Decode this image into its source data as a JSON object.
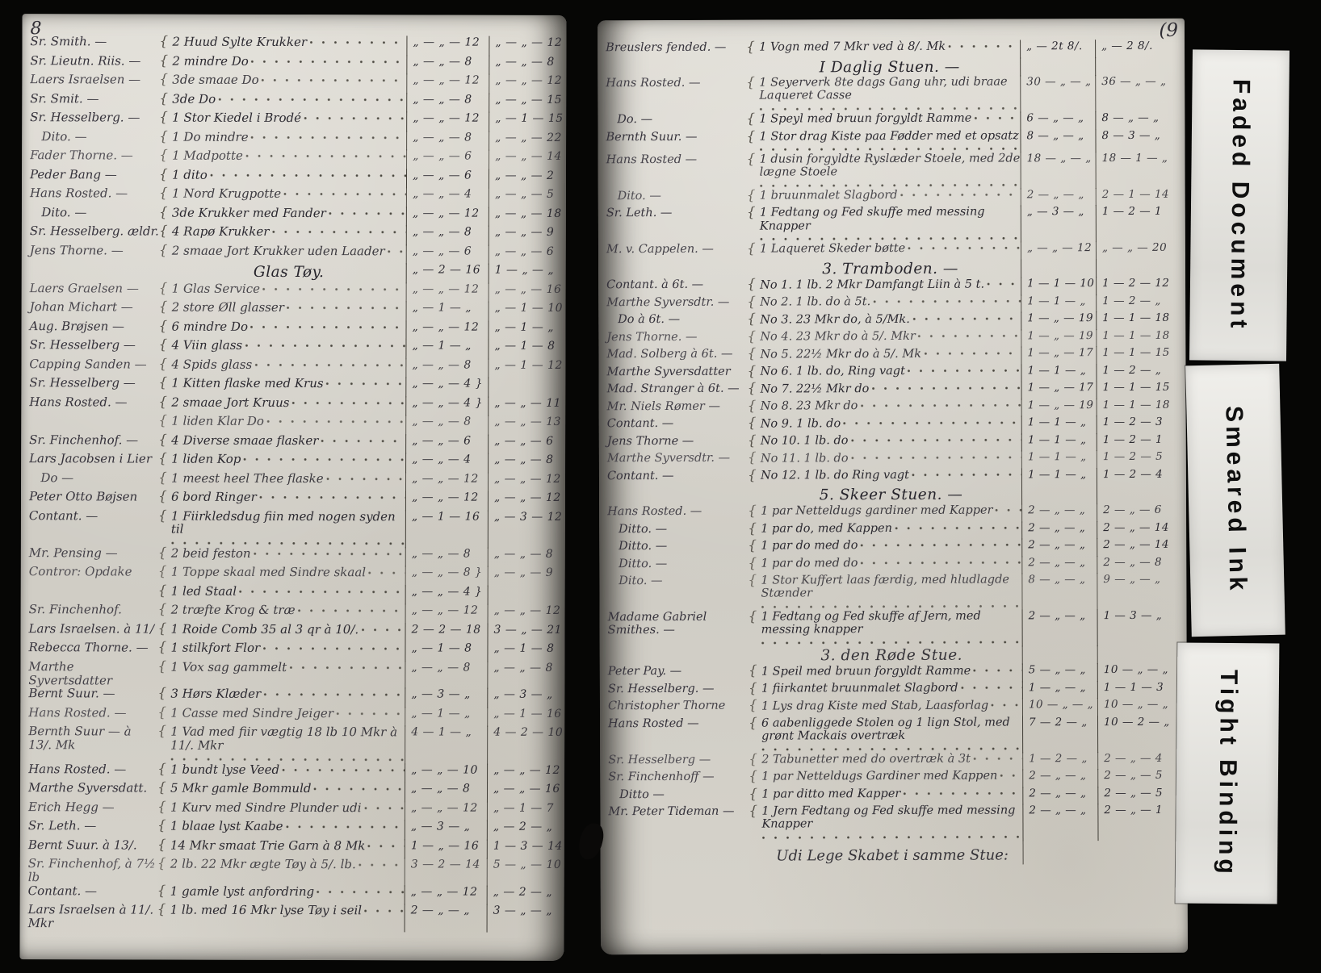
{
  "condition_tags": [
    "Faded Document",
    "Smeared Ink",
    "Tight Binding"
  ],
  "left_page": {
    "folio": "8",
    "rows": [
      {
        "name": "Sr. Smith. —",
        "item": "2 Huud Sylte Krukker",
        "v1": "„ — „ — 12",
        "v2": "„ — „ — 12"
      },
      {
        "name": "Sr. Lieutn. Riis. —",
        "item": "2 mindre Do",
        "v1": "„ — „ — 8",
        "v2": "„ — „ — 8"
      },
      {
        "name": "Laers Israelsen —",
        "item": "3de smaae Do",
        "v1": "„ — „ — 12",
        "v2": "„ — „ — 12"
      },
      {
        "name": "Sr. Smit. —",
        "item": "3de Do",
        "v1": "„ — „ — 8",
        "v2": "„ — „ — 15"
      },
      {
        "name": "Sr. Hesselberg. —",
        "item": "1 Stor Kiedel i Brodé",
        "v1": "„ — „ — 12",
        "v2": "„ — 1 — 15"
      },
      {
        "name": "   Dito. —",
        "item": "1 Do mindre",
        "v1": "„ — „ — 8",
        "v2": "„ — „ — 22"
      },
      {
        "name": "Fader Thorne. —",
        "item": "1 Madpotte",
        "v1": "„ — „ — 6",
        "v2": "„ — „ — 14"
      },
      {
        "name": "Peder Bang —",
        "item": "1 dito",
        "v1": "„ — „ — 6",
        "v2": "„ — „ — 2"
      },
      {
        "name": "Hans Rosted. —",
        "item": "1 Nord Krugpotte",
        "v1": "„ — „ — 4",
        "v2": "„ — „ — 5"
      },
      {
        "name": "   Dito. —",
        "item": "3de Krukker med Fander",
        "v1": "„ — „ — 12",
        "v2": "„ — „ — 18"
      },
      {
        "name": "Sr. Hesselberg. ældr.",
        "item": "4 Rapø Krukker",
        "v1": "„ — „ — 8",
        "v2": "„ — „ — 9"
      },
      {
        "name": "Jens Thorne. —",
        "item": "2 smaae Jort Krukker uden Laader",
        "v1": "„ — „ — 6",
        "v2": "„ — „ — 6"
      },
      {
        "heading": "Glas Tøy.",
        "v1": "„ — 2 — 16",
        "v2": "1 — „ — „"
      },
      {
        "name": "Laers Graelsen —",
        "item": "1 Glas Service",
        "v1": "„ — „ — 12",
        "v2": "„ — „ — 16"
      },
      {
        "name": "Johan Michart —",
        "item": "2 store Øll glasser",
        "v1": "„ — 1 — „",
        "v2": "„ — 1 — 10"
      },
      {
        "name": "Aug. Brøjsen —",
        "item": "6 mindre Do",
        "v1": "„ — „ — 12",
        "v2": "„ — 1 — „"
      },
      {
        "name": "Sr. Hesselberg —",
        "item": "4 Viin glass",
        "v1": "„ — 1 — „",
        "v2": "„ — 1 — 8"
      },
      {
        "name": "Capping Sanden —",
        "item": "4 Spids glass",
        "v1": "„ — „ — 8",
        "v2": "„ — 1 — 12"
      },
      {
        "name": "Sr. Hesselberg —",
        "item": "1 Kitten flaske med Krus",
        "v1": "„ — „ — 4 }",
        "v2": ""
      },
      {
        "name": "Hans Rosted. —",
        "item": "2 smaae Jort Kruus",
        "v1": "„ — „ — 4 }",
        "v2": "„ — „ — 11"
      },
      {
        "name": "",
        "item": "1 liden Klar Do",
        "v1": "„ — „ — 8",
        "v2": "„ — „ — 13"
      },
      {
        "name": "Sr. Finchenhof. —",
        "item": "4 Diverse smaae flasker",
        "v1": "„ — „ — 6",
        "v2": "„ — „ — 6"
      },
      {
        "name": "Lars Jacobsen i Lier",
        "item": "1 liden Kop",
        "v1": "„ — „ — 4",
        "v2": "„ — „ — 8"
      },
      {
        "name": "   Do —",
        "item": "1 meest heel Thee flaske",
        "v1": "„ — „ — 12",
        "v2": "„ — „ — 12"
      },
      {
        "name": "Peter Otto Bøjsen",
        "item": "6 bord Ringer",
        "v1": "„ — „ — 12",
        "v2": "„ — „ — 12"
      },
      {
        "name": "Contant. —",
        "item": "1 Fiirkledsdug fiin med nogen syden til",
        "v1": "„ — 1 — 16",
        "v2": "„ — 3 — 12"
      },
      {
        "name": "Mr. Pensing —",
        "item": "2 beid feston",
        "v1": "„ — „ — 8",
        "v2": "„ — „ — 8"
      },
      {
        "name": "Contror: Opdake",
        "item": "1 Toppe skaal med Sindre skaal",
        "v1": "„ — „ — 8 }",
        "v2": "„ — „ — 9"
      },
      {
        "name": "",
        "item": "1 led Staal",
        "v1": "„ — „ — 4 }",
        "v2": ""
      },
      {
        "name": "Sr. Finchenhof.",
        "item": "2 træfte Krog & træ",
        "v1": "„ — „ — 12",
        "v2": "„ — „ — 12"
      },
      {
        "name": "Lars Israelsen. à 11/",
        "item": "1 Roide Comb 35 al 3 qr à 10/.",
        "v1": "2 — 2 — 18",
        "v2": "3 — „ — 21"
      },
      {
        "name": "Rebecca Thorne. —",
        "item": "1 stilkfort Flor",
        "v1": "„ — 1 — 8",
        "v2": "„ — 1 — 8"
      },
      {
        "name": "Marthe Syvertsdatter",
        "item": "1 Vox sag gammelt",
        "v1": "„ — „ — 8",
        "v2": "„ — „ — 8"
      },
      {
        "name": "Bernt Suur. —",
        "item": "3 Hørs Klæder",
        "v1": "„ — 3 — „",
        "v2": "„ — 3 — „"
      },
      {
        "name": "Hans Rosted. —",
        "item": "1 Casse med Sindre Jeiger",
        "v1": "„ — 1 — „",
        "v2": "„ — 1 — 16"
      },
      {
        "name": "Bernth Suur — à 13/. Mk",
        "item": "1 Vad med fiir vægtig 18 lb 10 Mkr à 11/. Mkr",
        "v1": "4 — 1 — „",
        "v2": "4 — 2 — 10"
      },
      {
        "name": "Hans Rosted. —",
        "item": "1 bundt lyse Veed",
        "v1": "„ — „ — 10",
        "v2": "„ — „ — 12"
      },
      {
        "name": "Marthe Syversdatt.",
        "item": "5 Mkr gamle Bommuld",
        "v1": "„ — „ — 8",
        "v2": "„ — „ — 16"
      },
      {
        "name": "Erich Hegg —",
        "item": "1 Kurv med Sindre Plunder udi",
        "v1": "„ — „ — 12",
        "v2": "„ — 1 — 7"
      },
      {
        "name": "Sr. Leth. —",
        "item": "1 blaae lyst Kaabe",
        "v1": "„ — 3 — „",
        "v2": "„ — 2 — „"
      },
      {
        "name": "Bernt Suur. à 13/.",
        "item": "14 Mkr smaat Trie Garn à 8 Mk",
        "v1": "1 — „ — 16",
        "v2": "1 — 3 — 14"
      },
      {
        "name": "Sr. Finchenhof, à 7½ lb",
        "item": "2 lb. 22 Mkr ægte Tøy à 5/. lb.",
        "v1": "3 — 2 — 14",
        "v2": "5 — „ — 10"
      },
      {
        "name": "Contant. —",
        "item": "1 gamle lyst anfordring",
        "v1": "„ — „ — 12",
        "v2": "„ — 2 — „"
      },
      {
        "name": "Lars Israelsen à 11/. Mkr",
        "item": "1 lb. med 16 Mkr lyse Tøy i seil",
        "v1": "2 — „ — „",
        "v2": "3 — „ — „"
      }
    ]
  },
  "right_page": {
    "folio": "(9",
    "rows": [
      {
        "name": "Breuslers fended. —",
        "item": "1 Vogn med 7 Mkr ved à 8/. Mk",
        "v1": "„ — 2t 8/.",
        "v2": "„ — 2 8/."
      },
      {
        "heading": "I Daglig Stuen. —"
      },
      {
        "name": "Hans Rosted. —",
        "item": "1 Seyerverk 8te dags Gang uhr, udi braae Laqueret Casse",
        "v1": "30 — „ — „",
        "v2": "36 — „ — „"
      },
      {
        "name": "   Do. —",
        "item": "1 Speyl med bruun forgyldt Ramme",
        "v1": "6 — „ — „",
        "v2": "8 — „ — „"
      },
      {
        "name": "Bernth Suur. —",
        "item": "1 Stor drag Kiste paa Fødder med et opsatz",
        "v1": "8 — „ — „",
        "v2": "8 — 3 — „"
      },
      {
        "name": "Hans Rosted —",
        "item": "1 dusin forgyldte Ryslæder Stoele, med 2de lægne Stoele",
        "v1": "18 — „ — „",
        "v2": "18 — 1 — „"
      },
      {
        "name": "   Dito. —",
        "item": "1 bruunmalet Slagbord",
        "v1": "2 — „ — „",
        "v2": "2 — 1 — 14"
      },
      {
        "name": "Sr. Leth. —",
        "item": "1 Fedtang og Fed skuffe med messing Knapper",
        "v1": "„ — 3 — „",
        "v2": "1 — 2 — 1"
      },
      {
        "name": "M. v. Cappelen. —",
        "item": "1 Laqueret Skeder bøtte",
        "v1": "„ — „ — 12",
        "v2": "„ — „ — 20"
      },
      {
        "heading": "3. Tramboden. —"
      },
      {
        "name": "Contant. à 6t. —",
        "item": "No 1. 1 lb. 2 Mkr Damfangt Liin à 5 t.",
        "v1": "1 — 1 — 10",
        "v2": "1 — 2 — 12"
      },
      {
        "name": "Marthe Syversdtr. —",
        "item": "No 2. 1 lb. do à 5t.",
        "v1": "1 — 1 — „",
        "v2": "1 — 2 — „"
      },
      {
        "name": "   Do à 6t. —",
        "item": "No 3. 23 Mkr do, à 5/Mk.",
        "v1": "1 — „ — 19",
        "v2": "1 — 1 — 18"
      },
      {
        "name": "Jens Thorne. —",
        "item": "No 4. 23 Mkr do à 5/. Mkr",
        "v1": "1 — „ — 19",
        "v2": "1 — 1 — 18"
      },
      {
        "name": "Mad. Solberg à 6t. —",
        "item": "No 5. 22½ Mkr do à 5/. Mk",
        "v1": "1 — „ — 17",
        "v2": "1 — 1 — 15"
      },
      {
        "name": "Marthe Syversdatter",
        "item": "No 6. 1 lb. do, Ring vagt",
        "v1": "1 — 1 — „",
        "v2": "1 — 2 — „"
      },
      {
        "name": "Mad. Stranger à 6t. —",
        "item": "No 7. 22½ Mkr do",
        "v1": "1 — „ — 17",
        "v2": "1 — 1 — 15"
      },
      {
        "name": "Mr. Niels Rømer —",
        "item": "No 8. 23 Mkr do",
        "v1": "1 — „ — 19",
        "v2": "1 — 1 — 18"
      },
      {
        "name": "Contant. —",
        "item": "No 9. 1 lb. do",
        "v1": "1 — 1 — „",
        "v2": "1 — 2 — 3"
      },
      {
        "name": "Jens Thorne —",
        "item": "No 10. 1 lb. do",
        "v1": "1 — 1 — „",
        "v2": "1 — 2 — 1"
      },
      {
        "name": "Marthe Syversdtr. —",
        "item": "No 11. 1 lb. do",
        "v1": "1 — 1 — „",
        "v2": "1 — 2 — 5"
      },
      {
        "name": "Contant. —",
        "item": "No 12. 1 lb. do Ring vagt",
        "v1": "1 — 1 — „",
        "v2": "1 — 2 — 4"
      },
      {
        "heading": "5. Skeer Stuen. —"
      },
      {
        "name": "Hans Rosted. —",
        "item": "1 par Netteldugs gardiner med Kapper",
        "v1": "2 — „ — „",
        "v2": "2 — „ — 6"
      },
      {
        "name": "   Ditto. —",
        "item": "1 par do, med Kappen",
        "v1": "2 — „ — „",
        "v2": "2 — „ — 14"
      },
      {
        "name": "   Ditto. —",
        "item": "1 par do med do",
        "v1": "2 — „ — „",
        "v2": "2 — „ — 14"
      },
      {
        "name": "   Ditto. —",
        "item": "1 par do med do",
        "v1": "2 — „ — „",
        "v2": "2 — „ — 8"
      },
      {
        "name": "   Dito. —",
        "item": "1 Stor Kuffert laas færdig, med hludlagde Stænder",
        "v1": "8 — „ — „",
        "v2": "9 — „ — „"
      },
      {
        "name": "Madame Gabriel Smithes. —",
        "item": "1 Fedtang og Fed skuffe af Jern, med messing knapper",
        "v1": "2 — „ — „",
        "v2": "1 — 3 — „"
      },
      {
        "heading": "3. den Røde Stue."
      },
      {
        "name": "Peter Pay. —",
        "item": "1 Speil med bruun forgyldt Ramme",
        "v1": "5 — „ — „",
        "v2": "10 — „ — „"
      },
      {
        "name": "Sr. Hesselberg. —",
        "item": "1 fiirkantet bruunmalet Slagbord",
        "v1": "1 — „ — „",
        "v2": "1 — 1 — 3"
      },
      {
        "name": "Christopher Thorne",
        "item": "1 Lys drag Kiste med Stab, Laasforlag",
        "v1": "10 — „ — „",
        "v2": "10 — „ — „"
      },
      {
        "name": "Hans Rosted —",
        "item": "6 aabenliggede Stolen og 1 lign Stol, med grønt Mackais overtræk",
        "v1": "7 — 2 — „",
        "v2": "10 — 2 — „"
      },
      {
        "name": "Sr. Hesselberg —",
        "item": "2 Tabunetter med do overtræk à 3t",
        "v1": "1 — 2 — „",
        "v2": "2 — „ — 4"
      },
      {
        "name": "Sr. Finchenhoff —",
        "item": "1 par Netteldugs Gardiner med Kappen",
        "v1": "2 — „ — „",
        "v2": "2 — „ — 5"
      },
      {
        "name": "   Ditto —",
        "item": "1 par ditto med Kapper",
        "v1": "2 — „ — „",
        "v2": "2 — „ — 5"
      },
      {
        "name": "Mr. Peter Tideman —",
        "item": "1 Jern Fedtang og Fed skuffe med messing Knapper",
        "v1": "2 — „ — „",
        "v2": "2 — „ — 1"
      },
      {
        "footer": "Udi Lege Skabet i samme Stue:"
      }
    ]
  }
}
